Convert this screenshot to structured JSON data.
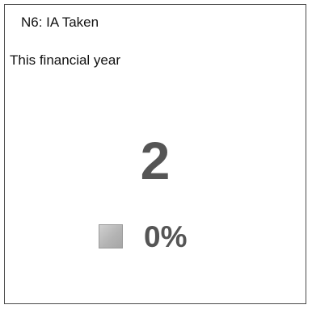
{
  "widget": {
    "title": "N6: IA Taken",
    "subtitle": "This financial year",
    "value": "2",
    "change": {
      "icon": "neutral-square-icon",
      "percent": "0%"
    }
  }
}
